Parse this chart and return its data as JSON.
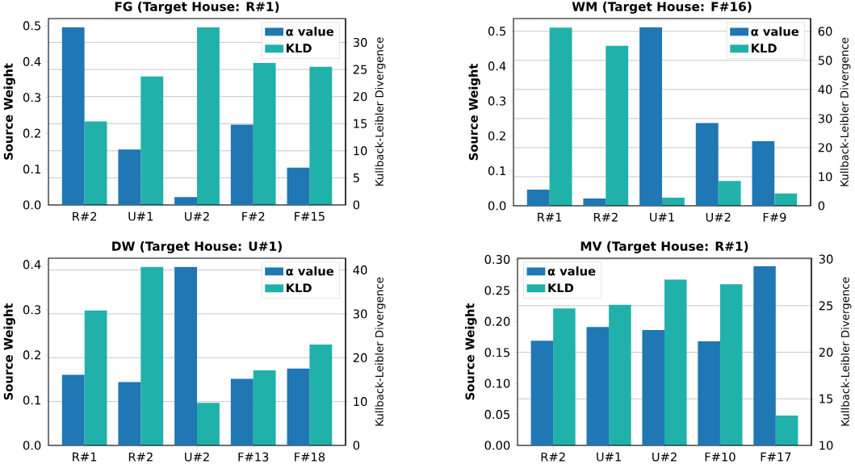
{
  "chart_data": [
    {
      "type": "bar",
      "title": "FG (Target House: R#1)",
      "ylabel": "Source Weight",
      "y2label": "Kullback-Leibler Divergence",
      "categories": [
        "R#2",
        "U#1",
        "U#2",
        "F#2",
        "F#15"
      ],
      "series": [
        {
          "name": "α value",
          "color": "#1f77b4",
          "values": [
            0.496,
            0.155,
            0.022,
            0.224,
            0.104
          ]
        },
        {
          "name": "KLD",
          "color": "#20b2aa",
          "axis": "y2",
          "values": [
            15.4,
            23.7,
            32.8,
            26.2,
            25.5
          ]
        }
      ],
      "ylim": [
        0,
        0.52
      ],
      "yticks": [
        {
          "value": 0,
          "label": "0.0"
        },
        0.1,
        0.2,
        0.3,
        0.4,
        0.5
      ],
      "y2lim": [
        0,
        34.4
      ],
      "y2ticks": [
        0,
        5,
        10,
        15,
        20,
        25,
        30
      ],
      "grid": "y2",
      "legend": "top right"
    },
    {
      "type": "bar",
      "title": "WM (Target House: F#16)",
      "ylabel": "Source Weight",
      "y2label": "Kullback-Leibler Divergence",
      "categories": [
        "R#1",
        "R#2",
        "U#1",
        "U#2",
        "F#9"
      ],
      "series": [
        {
          "name": "α value",
          "color": "#1f77b4",
          "values": [
            0.046,
            0.021,
            0.511,
            0.237,
            0.185
          ]
        },
        {
          "name": "KLD",
          "color": "#20b2aa",
          "axis": "y2",
          "values": [
            61.3,
            55.0,
            2.8,
            8.5,
            4.2
          ]
        }
      ],
      "ylim": [
        0,
        0.536
      ],
      "yticks": [
        {
          "value": 0,
          "label": "0.0"
        },
        0.1,
        0.2,
        0.3,
        0.4,
        0.5
      ],
      "y2lim": [
        0,
        64.4
      ],
      "y2ticks": [
        0,
        10,
        20,
        30,
        40,
        50,
        60
      ],
      "grid": "y2",
      "legend": "top right"
    },
    {
      "type": "bar",
      "title": "DW (Target House: U#1)",
      "ylabel": "Source Weight",
      "y2label": "Kullback-Leibler Divergence",
      "categories": [
        "R#1",
        "R#2",
        "U#2",
        "F#13",
        "F#18"
      ],
      "series": [
        {
          "name": "α value",
          "color": "#1f77b4",
          "values": [
            0.156,
            0.14,
            0.395,
            0.147,
            0.17
          ]
        },
        {
          "name": "KLD",
          "color": "#20b2aa",
          "axis": "y2",
          "values": [
            30.8,
            40.7,
            9.7,
            17.1,
            23.0
          ]
        }
      ],
      "ylim": [
        0,
        0.414
      ],
      "yticks": [
        {
          "value": 0,
          "label": "0.0"
        },
        0.1,
        0.2,
        0.3,
        0.4
      ],
      "y2lim": [
        0,
        42.7
      ],
      "y2ticks": [
        0,
        10,
        20,
        30,
        40
      ],
      "grid": "y2",
      "legend": "top right"
    },
    {
      "type": "bar",
      "title": "MV (Target House: R#1)",
      "ylabel": "Source Weight",
      "y2label": "Kullback-Leibler Divergence",
      "categories": [
        "R#2",
        "U#1",
        "U#2",
        "F#10",
        "F#17"
      ],
      "series": [
        {
          "name": "α value",
          "color": "#1f77b4",
          "values": [
            0.169,
            0.191,
            0.186,
            0.168,
            0.289
          ]
        },
        {
          "name": "KLD",
          "color": "#20b2aa",
          "axis": "y2",
          "values": [
            24.7,
            25.1,
            27.8,
            27.3,
            13.2
          ]
        }
      ],
      "ylim": [
        0,
        0.302
      ],
      "yticks": [
        {
          "value": 0,
          "label": "0.00"
        },
        0.05,
        {
          "value": 0.1,
          "label": "0.10"
        },
        0.15,
        {
          "value": 0.2,
          "label": "0.20"
        },
        0.25,
        {
          "value": 0.3,
          "label": "0.30"
        }
      ],
      "y2lim": [
        10,
        30.1
      ],
      "y2ticks": [
        10,
        15,
        20,
        25,
        30
      ],
      "grid": "y2",
      "legend": "top left"
    }
  ]
}
